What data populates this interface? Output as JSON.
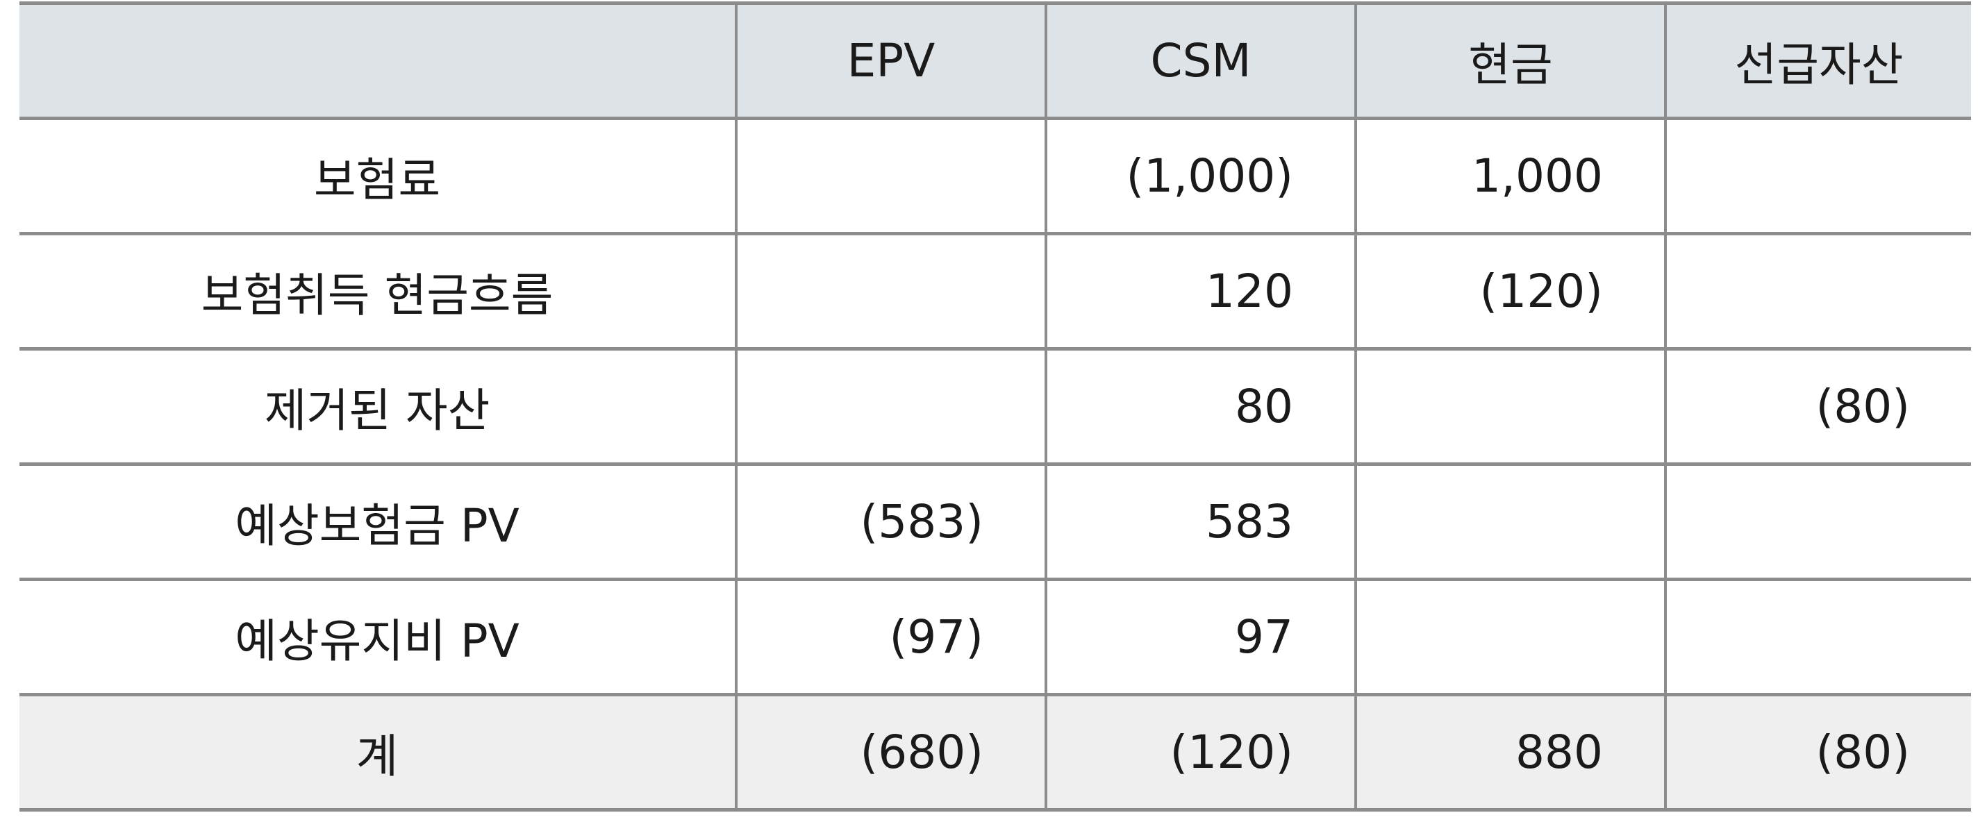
{
  "table": {
    "headers": [
      "",
      "EPV",
      "CSM",
      "현금",
      "선급자산"
    ],
    "rows": [
      {
        "label": "보험료",
        "cells": [
          "",
          "(1,000)",
          "1,000",
          ""
        ]
      },
      {
        "label": "보험취득 현금흐름",
        "cells": [
          "",
          "120",
          "(120)",
          ""
        ]
      },
      {
        "label": "제거된 자산",
        "cells": [
          "",
          "80",
          "",
          "(80)"
        ]
      },
      {
        "label": "예상보험금 PV",
        "cells": [
          "(583)",
          "583",
          "",
          ""
        ]
      },
      {
        "label": "예상유지비 PV",
        "cells": [
          "(97)",
          "97",
          "",
          ""
        ]
      }
    ],
    "total": {
      "label": "계",
      "cells": [
        "(680)",
        "(120)",
        "880",
        "(80)"
      ]
    },
    "colors": {
      "header_bg": "#dde3e7",
      "total_bg": "#efefef",
      "border": "#8c8c8c"
    }
  }
}
